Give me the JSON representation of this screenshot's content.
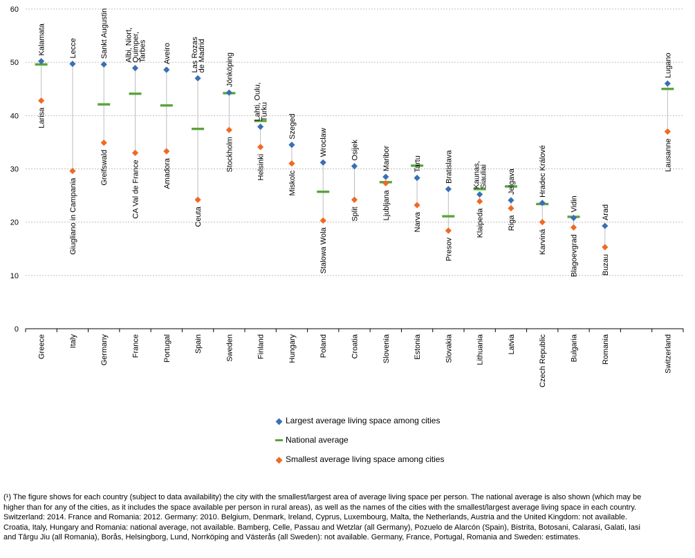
{
  "chart_data": {
    "type": "scatter",
    "ylim": [
      0,
      60
    ],
    "yticks": [
      0,
      10,
      20,
      30,
      40,
      50,
      60
    ],
    "grid": true,
    "legend_position": "bottom",
    "colors": {
      "largest": "#3a6fb4",
      "national": "#5aa33c",
      "smallest": "#ee6a24",
      "range_line": "#bdbdbd",
      "grid": "#bfbfbf"
    },
    "series": [
      {
        "name": "Largest average living space among cities",
        "marker": "diamond"
      },
      {
        "name": "National average",
        "marker": "dash"
      },
      {
        "name": "Smallest average living space among cities",
        "marker": "diamond"
      }
    ],
    "countries": [
      {
        "country": "Greece",
        "largest": 50.2,
        "largest_city": "Kalamata",
        "national": 49.6,
        "smallest": 42.8,
        "smallest_city": "Larisa"
      },
      {
        "country": "Italy",
        "largest": 49.7,
        "largest_city": "Lecce",
        "national": null,
        "smallest": 29.6,
        "smallest_city": "Giugliano in Campania"
      },
      {
        "country": "Germany",
        "largest": 49.6,
        "largest_city": "Sankt Augustin",
        "national": 42.1,
        "smallest": 34.9,
        "smallest_city": "Greifswald"
      },
      {
        "country": "France",
        "largest": 48.9,
        "largest_city": "Albi, Niort, Quimper, Tarbes",
        "national": 44.1,
        "smallest": 33.0,
        "smallest_city": "CA Val de France"
      },
      {
        "country": "Portugal",
        "largest": 48.6,
        "largest_city": "Aveiro",
        "national": 41.9,
        "smallest": 33.3,
        "smallest_city": "Amadora"
      },
      {
        "country": "Spain",
        "largest": 47.0,
        "largest_city": "Las Rozas de Madrid",
        "national": 37.5,
        "smallest": 24.2,
        "smallest_city": "Ceuta"
      },
      {
        "country": "Sweden",
        "largest": 44.3,
        "largest_city": "Jönköping",
        "national": 44.2,
        "smallest": 37.3,
        "smallest_city": "Stockholm"
      },
      {
        "country": "Finland",
        "largest": 37.9,
        "largest_city": "Lahti, Oulu, Turku",
        "national": 39.0,
        "smallest": 34.1,
        "smallest_city": "Helsinki"
      },
      {
        "country": "Hungary",
        "largest": 34.5,
        "largest_city": "Szeged",
        "national": null,
        "smallest": 31.0,
        "smallest_city": "Miskolc"
      },
      {
        "country": "Poland",
        "largest": 31.2,
        "largest_city": "Wroclaw",
        "national": 25.7,
        "smallest": 20.3,
        "smallest_city": "Stalowa Wola"
      },
      {
        "country": "Croatia",
        "largest": 30.5,
        "largest_city": "Osijek",
        "national": null,
        "smallest": 24.2,
        "smallest_city": "Split"
      },
      {
        "country": "Slovenia",
        "largest": 28.5,
        "largest_city": "Maribor",
        "national": 27.5,
        "smallest": 27.3,
        "smallest_city": "Ljubljana"
      },
      {
        "country": "Estonia",
        "largest": 28.3,
        "largest_city": "Tartu",
        "national": 30.6,
        "smallest": 23.2,
        "smallest_city": "Narva"
      },
      {
        "country": "Slovakia",
        "largest": 26.2,
        "largest_city": "Bratislava",
        "national": 21.1,
        "smallest": 18.4,
        "smallest_city": "Presov"
      },
      {
        "country": "Lithuania",
        "largest": 25.2,
        "largest_city": "Kaunas, Siauliai",
        "national": 26.2,
        "smallest": 23.9,
        "smallest_city": "Klaipeda"
      },
      {
        "country": "Latvia",
        "largest": 24.1,
        "largest_city": "Jelgava",
        "national": 26.7,
        "smallest": 22.6,
        "smallest_city": "Riga"
      },
      {
        "country": "Czech Republic",
        "largest": 23.6,
        "largest_city": "Hradec Králové",
        "national": 23.4,
        "smallest": 20.0,
        "smallest_city": "Karviná"
      },
      {
        "country": "Bulgaria",
        "largest": 20.8,
        "largest_city": "Vidin",
        "national": 21.0,
        "smallest": 19.0,
        "smallest_city": "Blagoevgrad"
      },
      {
        "country": "Romania",
        "largest": 19.3,
        "largest_city": "Arad",
        "national": null,
        "smallest": 15.3,
        "smallest_city": "Buzau"
      },
      {
        "country": "",
        "largest": null,
        "largest_city": "",
        "national": null,
        "smallest": null,
        "smallest_city": "",
        "spacer": true
      },
      {
        "country": "Switzerland",
        "largest": 46.0,
        "largest_city": "Lugano",
        "national": 45.0,
        "smallest": 37.0,
        "smallest_city": "Lausanne"
      }
    ]
  },
  "footnote": "(¹) The figure shows for each country (subject to data availability) the city with the smallest/largest area of average living space per person. The national average is also shown (which may be higher than for any of the cities, as it includes the space available per person in rural areas), as well as the names of the cities with the smallest/largest average living space in each country. Switzerland: 2014. France and Romania: 2012. Germany: 2010. Belgium, Denmark, Ireland, Cyprus, Luxembourg, Malta, the Netherlands, Austria and the United Kingdom: not available. Croatia, Italy, Hungary and Romania: national average, not available. Bamberg, Celle, Passau and Wetzlar (all Germany), Pozuelo de Alarcón (Spain), Bistrita, Botosani, Calarasi, Galati, Iasi and Târgu Jiu (all Romania), Borås, Helsingborg, Lund, Norrköping and Västerås (all Sweden): not available. Germany, France, Portugal, Romania and Sweden: estimates."
}
